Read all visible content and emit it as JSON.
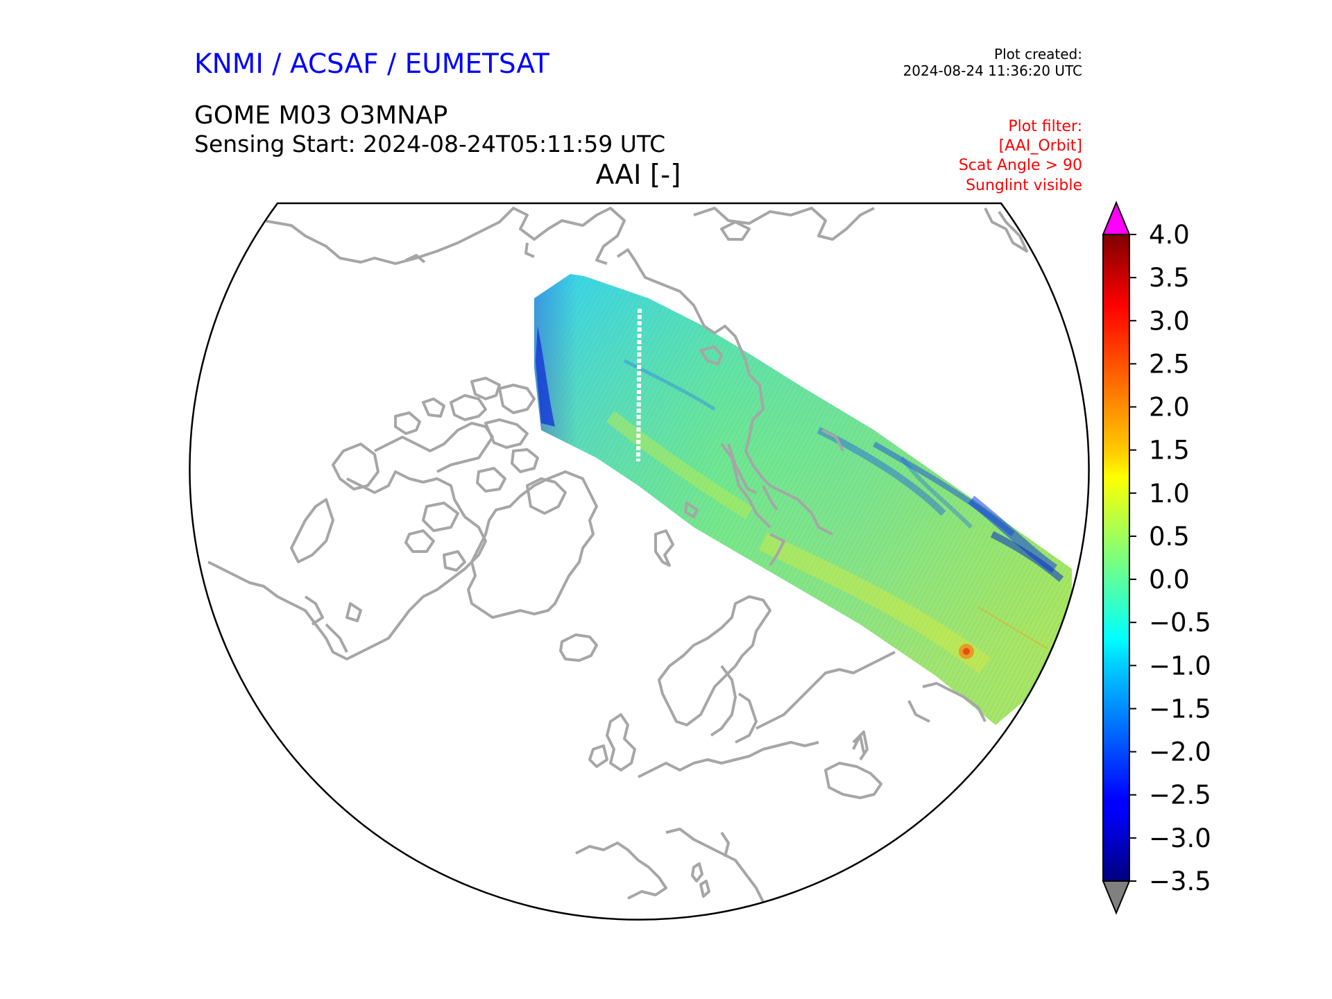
{
  "header": {
    "organisations": "KNMI / ACSAF / EUMETSAT",
    "plot_created_label": "Plot created:",
    "plot_created_value": "2024-08-24 11:36:20 UTC",
    "product": "GOME M03 O3MNAP",
    "sensing_start": "Sensing Start: 2024-08-24T05:11:59 UTC",
    "title": "AAI [-]"
  },
  "plot_filter": [
    "Plot filter:",
    "[AAI_Orbit]",
    "Scat Angle > 90",
    "Sunglint visible"
  ],
  "colorbar": {
    "min": -3.5,
    "max": 4.0,
    "ticks": [
      "4.0",
      "3.5",
      "3.0",
      "2.5",
      "2.0",
      "1.5",
      "1.0",
      "0.5",
      "0.0",
      "−0.5",
      "−1.0",
      "−1.5",
      "−2.0",
      "−2.5",
      "−3.0",
      "−3.5"
    ],
    "colormap": "jet",
    "over_color": "#ff00ff",
    "under_color": "#808080"
  },
  "map": {
    "projection": "north-polar stereographic",
    "coastline_color": "#a6a6a6",
    "swath_typical_range": [
      -1.5,
      1.0
    ]
  }
}
